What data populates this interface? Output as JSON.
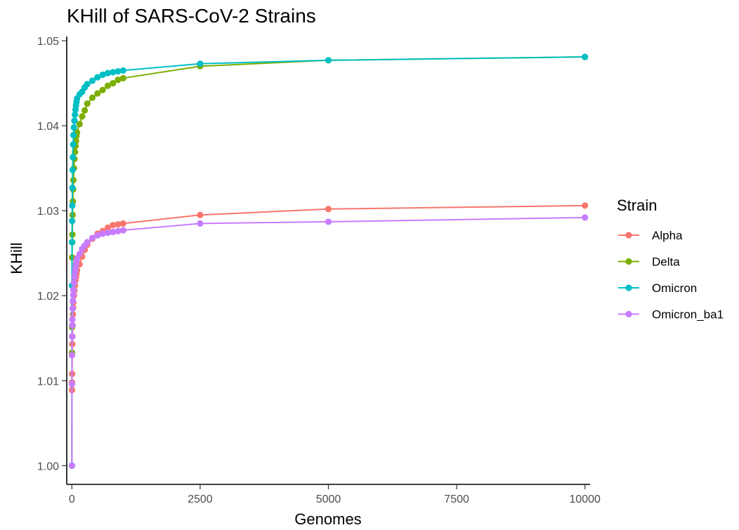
{
  "chart_data": {
    "type": "line",
    "title": "KHill of SARS-CoV-2 Strains",
    "xlabel": "Genomes",
    "ylabel": "KHill",
    "xlim": [
      -100,
      10100
    ],
    "ylim": [
      0.9978,
      1.0505
    ],
    "x_ticks": [
      0,
      2500,
      5000,
      7500,
      10000
    ],
    "x_tick_labels": [
      "0",
      "2500",
      "5000",
      "7500",
      "10000"
    ],
    "y_ticks": [
      1.0,
      1.01,
      1.02,
      1.03,
      1.04,
      1.05
    ],
    "y_tick_labels": [
      "1.00",
      "1.01",
      "1.02",
      "1.03",
      "1.04",
      "1.05"
    ],
    "grid": false,
    "legend": {
      "title": "Strain",
      "position": "right"
    },
    "series": [
      {
        "name": "Alpha",
        "color": "#F8766D",
        "points": [
          [
            1,
            1.0
          ],
          [
            2,
            1.0089
          ],
          [
            3,
            1.0098
          ],
          [
            5,
            1.0108
          ],
          [
            8,
            1.0143
          ],
          [
            10,
            1.0152
          ],
          [
            15,
            1.0165
          ],
          [
            20,
            1.0178
          ],
          [
            25,
            1.0186
          ],
          [
            30,
            1.0192
          ],
          [
            40,
            1.02
          ],
          [
            50,
            1.0206
          ],
          [
            60,
            1.0212
          ],
          [
            70,
            1.0218
          ],
          [
            80,
            1.0222
          ],
          [
            90,
            1.0226
          ],
          [
            100,
            1.023
          ],
          [
            150,
            1.0237
          ],
          [
            200,
            1.0246
          ],
          [
            250,
            1.0254
          ],
          [
            300,
            1.026
          ],
          [
            400,
            1.0267
          ],
          [
            500,
            1.0273
          ],
          [
            600,
            1.0276
          ],
          [
            700,
            1.028
          ],
          [
            800,
            1.0283
          ],
          [
            900,
            1.0284
          ],
          [
            1000,
            1.0285
          ],
          [
            2500,
            1.0295
          ],
          [
            5000,
            1.0302
          ],
          [
            10000,
            1.0306
          ]
        ]
      },
      {
        "name": "Delta",
        "color": "#7CAE00",
        "points": [
          [
            1,
            1.0
          ],
          [
            2,
            1.0133
          ],
          [
            3,
            1.0163
          ],
          [
            5,
            1.0245
          ],
          [
            8,
            1.0263
          ],
          [
            10,
            1.0272
          ],
          [
            15,
            1.0295
          ],
          [
            20,
            1.0311
          ],
          [
            25,
            1.0325
          ],
          [
            30,
            1.0336
          ],
          [
            40,
            1.035
          ],
          [
            50,
            1.0361
          ],
          [
            60,
            1.0369
          ],
          [
            70,
            1.0376
          ],
          [
            80,
            1.0382
          ],
          [
            90,
            1.0388
          ],
          [
            100,
            1.0392
          ],
          [
            150,
            1.0402
          ],
          [
            200,
            1.0411
          ],
          [
            250,
            1.0418
          ],
          [
            300,
            1.0426
          ],
          [
            400,
            1.0433
          ],
          [
            500,
            1.0438
          ],
          [
            600,
            1.0442
          ],
          [
            700,
            1.0447
          ],
          [
            800,
            1.045
          ],
          [
            900,
            1.0454
          ],
          [
            1000,
            1.0456
          ],
          [
            2500,
            1.047
          ],
          [
            5000,
            1.0477
          ],
          [
            10000,
            1.0481
          ]
        ]
      },
      {
        "name": "Omicron",
        "color": "#00BFC4",
        "points": [
          [
            1,
            1.0
          ],
          [
            2,
            1.0212
          ],
          [
            3,
            1.0263
          ],
          [
            5,
            1.0288
          ],
          [
            8,
            1.0306
          ],
          [
            10,
            1.0327
          ],
          [
            15,
            1.0348
          ],
          [
            20,
            1.0363
          ],
          [
            25,
            1.0378
          ],
          [
            30,
            1.0389
          ],
          [
            40,
            1.0398
          ],
          [
            50,
            1.0406
          ],
          [
            60,
            1.0413
          ],
          [
            70,
            1.0419
          ],
          [
            80,
            1.0424
          ],
          [
            90,
            1.0428
          ],
          [
            100,
            1.0432
          ],
          [
            150,
            1.0437
          ],
          [
            200,
            1.044
          ],
          [
            250,
            1.0445
          ],
          [
            300,
            1.0449
          ],
          [
            400,
            1.0453
          ],
          [
            500,
            1.0457
          ],
          [
            600,
            1.046
          ],
          [
            700,
            1.0462
          ],
          [
            800,
            1.0463
          ],
          [
            900,
            1.0464
          ],
          [
            1000,
            1.0465
          ],
          [
            2500,
            1.0473
          ],
          [
            5000,
            1.0477
          ],
          [
            10000,
            1.0481
          ]
        ]
      },
      {
        "name": "Omicron_ba1",
        "color": "#C77CFF",
        "points": [
          [
            1,
            1.0
          ],
          [
            2,
            1.0096
          ],
          [
            3,
            1.013
          ],
          [
            5,
            1.0152
          ],
          [
            8,
            1.0165
          ],
          [
            10,
            1.0172
          ],
          [
            15,
            1.0185
          ],
          [
            20,
            1.0194
          ],
          [
            25,
            1.0201
          ],
          [
            30,
            1.0207
          ],
          [
            40,
            1.0215
          ],
          [
            50,
            1.0222
          ],
          [
            60,
            1.0228
          ],
          [
            70,
            1.0233
          ],
          [
            80,
            1.0237
          ],
          [
            90,
            1.0241
          ],
          [
            100,
            1.0244
          ],
          [
            150,
            1.0249
          ],
          [
            200,
            1.0255
          ],
          [
            250,
            1.0259
          ],
          [
            300,
            1.0263
          ],
          [
            400,
            1.0268
          ],
          [
            500,
            1.0271
          ],
          [
            600,
            1.0273
          ],
          [
            700,
            1.0274
          ],
          [
            800,
            1.0275
          ],
          [
            900,
            1.0276
          ],
          [
            1000,
            1.0277
          ],
          [
            2500,
            1.0285
          ],
          [
            5000,
            1.0287
          ],
          [
            10000,
            1.0292
          ]
        ]
      }
    ]
  }
}
